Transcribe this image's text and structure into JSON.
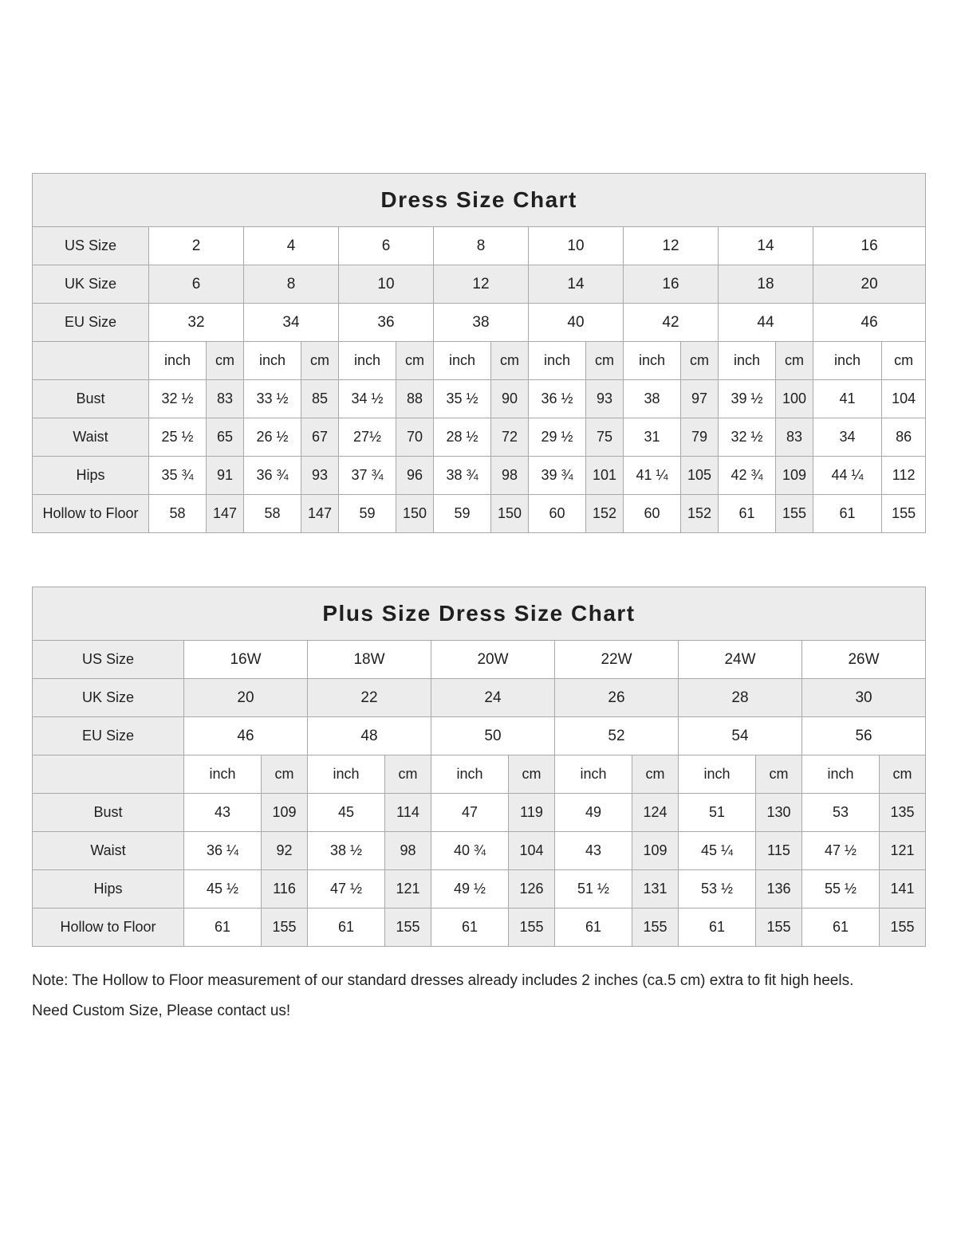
{
  "table1": {
    "title": "Dress Size Chart",
    "size_rows": [
      {
        "label": "US Size",
        "values": [
          "2",
          "4",
          "6",
          "8",
          "10",
          "12",
          "14",
          "16"
        ]
      },
      {
        "label": "UK Size",
        "values": [
          "6",
          "8",
          "10",
          "12",
          "14",
          "16",
          "18",
          "20"
        ]
      },
      {
        "label": "EU Size",
        "values": [
          "32",
          "34",
          "36",
          "38",
          "40",
          "42",
          "44",
          "46"
        ]
      }
    ],
    "unit_row": [
      "inch",
      "cm",
      "inch",
      "cm",
      "inch",
      "cm",
      "inch",
      "cm",
      "inch",
      "cm",
      "inch",
      "cm",
      "inch",
      "cm",
      "inch",
      "cm"
    ],
    "measure_rows": [
      {
        "label": "Bust",
        "values": [
          "32 ½",
          "83",
          "33 ½",
          "85",
          "34 ½",
          "88",
          "35 ½",
          "90",
          "36 ½",
          "93",
          "38",
          "97",
          "39 ½",
          "100",
          "41",
          "104"
        ]
      },
      {
        "label": "Waist",
        "values": [
          "25 ½",
          "65",
          "26 ½",
          "67",
          "27½",
          "70",
          "28 ½",
          "72",
          "29 ½",
          "75",
          "31",
          "79",
          "32 ½",
          "83",
          "34",
          "86"
        ]
      },
      {
        "label": "Hips",
        "values": [
          "35 ¾",
          "91",
          "36 ¾",
          "93",
          "37 ¾",
          "96",
          "38 ¾",
          "98",
          "39 ¾",
          "101",
          "41 ¼",
          "105",
          "42 ¾",
          "109",
          "44 ¼",
          "112"
        ]
      },
      {
        "label": "Hollow to Floor",
        "values": [
          "58",
          "147",
          "58",
          "147",
          "59",
          "150",
          "59",
          "150",
          "60",
          "152",
          "60",
          "152",
          "61",
          "155",
          "61",
          "155"
        ]
      }
    ]
  },
  "table2": {
    "title": "Plus Size Dress Size Chart",
    "size_rows": [
      {
        "label": "US Size",
        "values": [
          "16W",
          "18W",
          "20W",
          "22W",
          "24W",
          "26W"
        ]
      },
      {
        "label": "UK Size",
        "values": [
          "20",
          "22",
          "24",
          "26",
          "28",
          "30"
        ]
      },
      {
        "label": "EU Size",
        "values": [
          "46",
          "48",
          "50",
          "52",
          "54",
          "56"
        ]
      }
    ],
    "unit_row": [
      "inch",
      "cm",
      "inch",
      "cm",
      "inch",
      "cm",
      "inch",
      "cm",
      "inch",
      "cm",
      "inch",
      "cm"
    ],
    "measure_rows": [
      {
        "label": "Bust",
        "values": [
          "43",
          "109",
          "45",
          "114",
          "47",
          "119",
          "49",
          "124",
          "51",
          "130",
          "53",
          "135"
        ]
      },
      {
        "label": "Waist",
        "values": [
          "36 ¼",
          "92",
          "38 ½",
          "98",
          "40 ¾",
          "104",
          "43",
          "109",
          "45 ¼",
          "115",
          "47 ½",
          "121"
        ]
      },
      {
        "label": "Hips",
        "values": [
          "45 ½",
          "116",
          "47 ½",
          "121",
          "49 ½",
          "126",
          "51 ½",
          "131",
          "53 ½",
          "136",
          "55 ½",
          "141"
        ]
      },
      {
        "label": "Hollow to Floor",
        "values": [
          "61",
          "155",
          "61",
          "155",
          "61",
          "155",
          "61",
          "155",
          "61",
          "155",
          "61",
          "155"
        ]
      }
    ]
  },
  "notes": {
    "note": "Note: The Hollow to Floor measurement of our standard dresses already includes 2 inches (ca.5 cm) extra to fit high heels.",
    "custom": "Need Custom Size, Please contact us!"
  }
}
